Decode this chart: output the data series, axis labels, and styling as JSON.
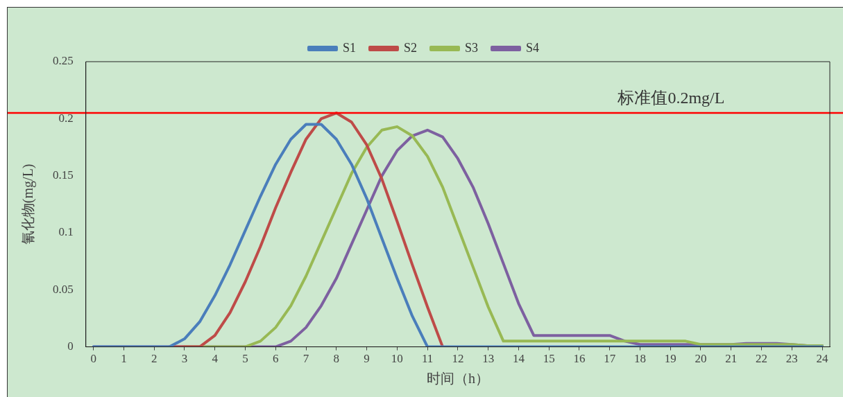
{
  "chart_data": {
    "type": "line",
    "xlabel": "时间（h）",
    "ylabel": "氰化物(mg/L)",
    "x": [
      0,
      0.5,
      1,
      1.5,
      2,
      2.5,
      3,
      3.5,
      4,
      4.5,
      5,
      5.5,
      6,
      6.5,
      7,
      7.5,
      8,
      8.5,
      9,
      9.5,
      10,
      10.5,
      11,
      11.5,
      12,
      12.5,
      13,
      13.5,
      14,
      14.5,
      15,
      15.5,
      16,
      16.5,
      17,
      17.5,
      18,
      18.5,
      19,
      19.5,
      20,
      20.5,
      21,
      21.5,
      22,
      22.5,
      23,
      23.5,
      24
    ],
    "series": [
      {
        "name": "S1",
        "color": "#4a7ebb",
        "values": [
          0,
          0,
          0,
          0,
          0,
          0,
          0.007,
          0.022,
          0.045,
          0.072,
          0.102,
          0.132,
          0.16,
          0.182,
          0.195,
          0.195,
          0.182,
          0.16,
          0.13,
          0.095,
          0.06,
          0.027,
          0,
          0,
          0,
          0,
          0,
          0,
          0,
          0,
          0,
          0,
          0,
          0,
          0,
          0,
          0,
          0,
          0,
          0,
          0,
          0,
          0,
          0,
          0,
          0,
          0,
          0,
          0
        ]
      },
      {
        "name": "S2",
        "color": "#be4b48",
        "values": [
          null,
          null,
          null,
          null,
          null,
          0,
          0,
          0,
          0.01,
          0.03,
          0.057,
          0.088,
          0.122,
          0.153,
          0.182,
          0.2,
          0.205,
          0.197,
          0.177,
          0.147,
          0.11,
          0.072,
          0.035,
          0,
          null,
          null,
          null,
          null,
          null,
          null,
          null,
          null,
          null,
          null,
          null,
          null,
          null,
          null,
          null,
          null,
          null,
          null,
          null,
          null,
          null,
          null,
          null,
          null,
          null
        ]
      },
      {
        "name": "S3",
        "color": "#98b954",
        "values": [
          null,
          null,
          null,
          null,
          null,
          null,
          0,
          0,
          0,
          0,
          0,
          0.005,
          0.017,
          0.036,
          0.062,
          0.092,
          0.122,
          0.152,
          0.175,
          0.19,
          0.193,
          0.185,
          0.167,
          0.14,
          0.105,
          0.07,
          0.035,
          0.005,
          0.005,
          0.005,
          0.005,
          0.005,
          0.005,
          0.005,
          0.005,
          0.005,
          0.005,
          0.005,
          0.005,
          0.005,
          0.002,
          0.002,
          0.002,
          0.002,
          0.002,
          0.002,
          0.002,
          0.001,
          0.001
        ]
      },
      {
        "name": "S4",
        "color": "#7d60a0",
        "values": [
          0,
          0,
          0,
          0,
          0,
          0,
          0,
          0,
          0,
          0,
          0,
          0,
          0,
          0.005,
          0.017,
          0.036,
          0.06,
          0.09,
          0.12,
          0.15,
          0.172,
          0.185,
          0.19,
          0.184,
          0.165,
          0.14,
          0.108,
          0.073,
          0.038,
          0.01,
          0.01,
          0.01,
          0.01,
          0.01,
          0.01,
          0.005,
          0.002,
          0.002,
          0.002,
          0.002,
          0.002,
          0.002,
          0.002,
          0.003,
          0.003,
          0.003,
          0.002,
          0.001,
          0.001
        ]
      }
    ],
    "xlim": [
      -0.25,
      24.25
    ],
    "xticks": [
      0,
      1,
      2,
      3,
      4,
      5,
      6,
      7,
      8,
      9,
      10,
      11,
      12,
      13,
      14,
      15,
      16,
      17,
      18,
      19,
      20,
      21,
      22,
      23,
      24
    ],
    "ylim": [
      0,
      0.25
    ],
    "yticks": [
      0,
      0.05,
      0.1,
      0.15,
      0.2,
      0.25
    ],
    "ref_lines": [
      {
        "axis": "y",
        "value": 0.205,
        "label": "标准值0.2mg/L",
        "color": "#ff0000"
      }
    ],
    "grid": false,
    "legend": "top",
    "marker": "none",
    "line_style": "solid"
  }
}
